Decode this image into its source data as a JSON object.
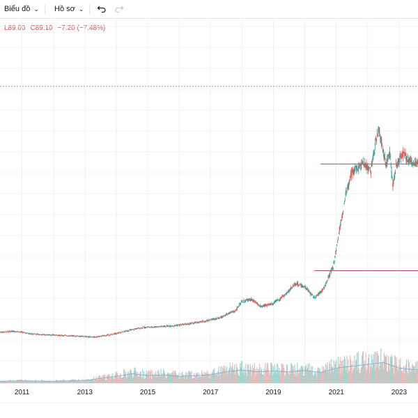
{
  "toolbar": {
    "chart_menu": "Biểu đồ",
    "profile_menu": "Hồ sơ"
  },
  "legend": {
    "low": "L89.00",
    "close": "C89.10",
    "change": "−7.20 (−7.48%)"
  },
  "colors": {
    "up": "#26a69a",
    "down": "#ef5350",
    "volume_line": "#7fb3d5",
    "grid": "#eef0f3",
    "level_line": "#b04a5a",
    "dotted_line": "#9598a1"
  },
  "chart_data": {
    "type": "candlestick",
    "x_tick_labels": [
      "2011",
      "2013",
      "2015",
      "2017",
      "2019",
      "2021",
      "2023"
    ],
    "x_range": [
      2010.3,
      2023.6
    ],
    "price_series": [
      [
        2010.3,
        19
      ],
      [
        2010.8,
        19.5
      ],
      [
        2011.3,
        18
      ],
      [
        2011.8,
        17.5
      ],
      [
        2012.3,
        17.2
      ],
      [
        2012.8,
        16.8
      ],
      [
        2013.3,
        16.2
      ],
      [
        2013.8,
        17.5
      ],
      [
        2014.3,
        19.5
      ],
      [
        2014.8,
        21.5
      ],
      [
        2015.3,
        22
      ],
      [
        2015.8,
        22.5
      ],
      [
        2016.3,
        23.5
      ],
      [
        2016.8,
        25
      ],
      [
        2017.3,
        27
      ],
      [
        2017.8,
        31
      ],
      [
        2018.0,
        36
      ],
      [
        2018.3,
        37
      ],
      [
        2018.6,
        33
      ],
      [
        2019.0,
        35
      ],
      [
        2019.4,
        40
      ],
      [
        2019.7,
        46
      ],
      [
        2020.0,
        44
      ],
      [
        2020.3,
        38
      ],
      [
        2020.6,
        43
      ],
      [
        2020.9,
        55
      ],
      [
        2021.1,
        75
      ],
      [
        2021.3,
        95
      ],
      [
        2021.5,
        108
      ],
      [
        2021.7,
        110
      ],
      [
        2021.9,
        112
      ],
      [
        2022.1,
        108
      ],
      [
        2022.25,
        123
      ],
      [
        2022.35,
        132
      ],
      [
        2022.5,
        118
      ],
      [
        2022.6,
        112
      ],
      [
        2022.7,
        118
      ],
      [
        2022.8,
        100
      ],
      [
        2022.9,
        110
      ],
      [
        2023.1,
        118
      ],
      [
        2023.3,
        114
      ],
      [
        2023.6,
        112
      ]
    ],
    "y_range": [
      0,
      185
    ],
    "levels": [
      {
        "price": 112,
        "from_x": 2020.5,
        "to_x": 2023.6,
        "style": "solid"
      },
      {
        "price": 53,
        "from_x": 2020.3,
        "to_x": 2023.6,
        "style": "solid"
      },
      {
        "price": 155,
        "from_x": 2010.3,
        "to_x": 2023.6,
        "style": "dotted"
      }
    ],
    "volume_relative": [
      [
        2010.3,
        0.05
      ],
      [
        2011.0,
        0.06
      ],
      [
        2012.0,
        0.05
      ],
      [
        2013.0,
        0.07
      ],
      [
        2014.0,
        0.18
      ],
      [
        2014.5,
        0.25
      ],
      [
        2015.0,
        0.2
      ],
      [
        2015.5,
        0.22
      ],
      [
        2016.0,
        0.18
      ],
      [
        2016.5,
        0.2
      ],
      [
        2017.0,
        0.22
      ],
      [
        2017.5,
        0.3
      ],
      [
        2018.0,
        0.35
      ],
      [
        2018.5,
        0.3
      ],
      [
        2019.0,
        0.32
      ],
      [
        2019.5,
        0.3
      ],
      [
        2020.0,
        0.34
      ],
      [
        2020.5,
        0.28
      ],
      [
        2021.0,
        0.4
      ],
      [
        2021.5,
        0.45
      ],
      [
        2022.0,
        0.5
      ],
      [
        2022.5,
        0.55
      ],
      [
        2023.0,
        0.4
      ],
      [
        2023.6,
        0.35
      ]
    ],
    "grid": true
  }
}
